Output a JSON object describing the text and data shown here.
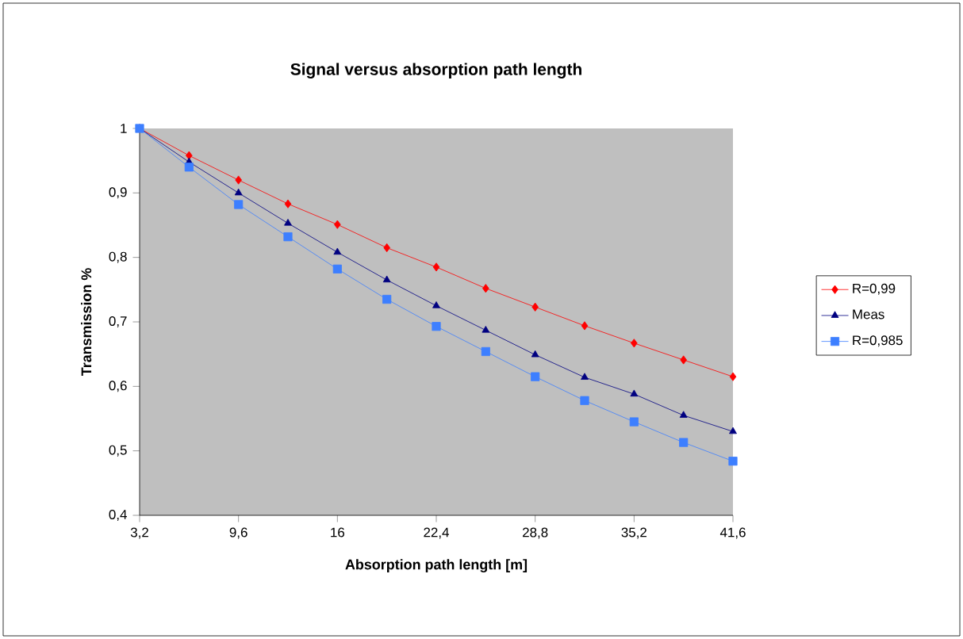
{
  "chart_data": {
    "type": "line",
    "title": "Signal versus absorption path length",
    "xlabel": "Absorption  path length [m]",
    "ylabel": "Transmission %",
    "x": [
      3.2,
      6.4,
      9.6,
      12.8,
      16,
      19.2,
      22.4,
      25.6,
      28.8,
      32,
      35.2,
      38.4,
      41.6
    ],
    "xlim": [
      3.2,
      41.6
    ],
    "xticks": [
      {
        "value": 3.2,
        "label": "3,2"
      },
      {
        "value": 9.6,
        "label": "9,6"
      },
      16,
      {
        "value": 22.4,
        "label": "22,4"
      },
      {
        "value": 28.8,
        "label": "28,8"
      },
      {
        "value": 35.2,
        "label": "35,2"
      },
      {
        "value": 41.6,
        "label": "41,6"
      }
    ],
    "ylim": [
      0.4,
      1
    ],
    "yticks": [
      {
        "value": 0.4,
        "label": "0,4"
      },
      {
        "value": 0.5,
        "label": "0,5"
      },
      {
        "value": 0.6,
        "label": "0,6"
      },
      {
        "value": 0.7,
        "label": "0,7"
      },
      {
        "value": 0.8,
        "label": "0,8"
      },
      {
        "value": 0.9,
        "label": "0,9"
      },
      1
    ],
    "grid": false,
    "legend": "right",
    "series": [
      {
        "name": "R=0,99",
        "color": "#ff0000",
        "marker": "diamond",
        "values": [
          1,
          0.958,
          0.92,
          0.883,
          0.851,
          0.815,
          0.785,
          0.752,
          0.723,
          0.694,
          0.667,
          0.641,
          0.615
        ]
      },
      {
        "name": "Meas",
        "color": "#000080",
        "marker": "triangle",
        "values": [
          1,
          0.948,
          0.9,
          0.853,
          0.808,
          0.765,
          0.725,
          0.687,
          0.649,
          0.614,
          0.588,
          0.555,
          0.53
        ]
      },
      {
        "name": "R=0,985",
        "color": "#3d7fff",
        "marker": "square",
        "values": [
          1,
          0.94,
          0.882,
          0.832,
          0.782,
          0.735,
          0.693,
          0.654,
          0.615,
          0.578,
          0.545,
          0.513,
          0.484
        ]
      }
    ]
  }
}
